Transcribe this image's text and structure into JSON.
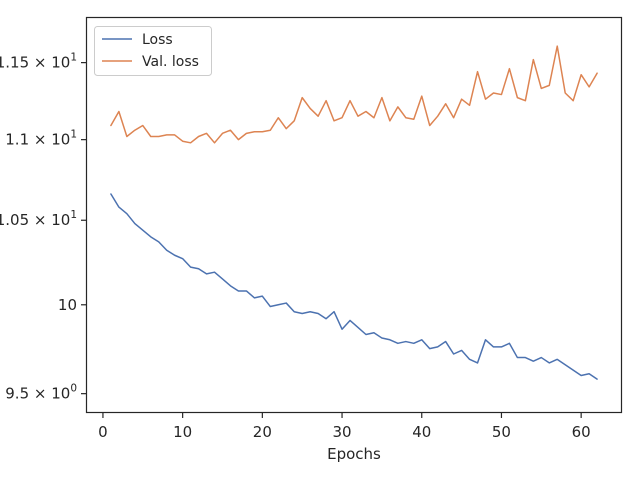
{
  "chart_data": {
    "type": "line",
    "title": "",
    "xlabel": "Epochs",
    "ylabel": "",
    "xlim": [
      -2,
      65
    ],
    "ylim": [
      9.4,
      11.8
    ],
    "yscale": "log",
    "grid": false,
    "legend_position": "top-left",
    "x_ticks": [
      {
        "value": 0,
        "label": "0"
      },
      {
        "value": 10,
        "label": "10"
      },
      {
        "value": 20,
        "label": "20"
      },
      {
        "value": 30,
        "label": "30"
      },
      {
        "value": 40,
        "label": "40"
      },
      {
        "value": 50,
        "label": "50"
      },
      {
        "value": 60,
        "label": "60"
      }
    ],
    "y_ticks": [
      {
        "value": 9.5,
        "mantissa": "9.5",
        "exponent": "0"
      },
      {
        "value": 10,
        "mantissa": "10",
        "exponent": ""
      },
      {
        "value": 10.5,
        "mantissa": "1.05",
        "exponent": "1"
      },
      {
        "value": 11,
        "mantissa": "1.1",
        "exponent": "1"
      },
      {
        "value": 11.5,
        "mantissa": "1.15",
        "exponent": "1"
      }
    ],
    "x": [
      1,
      2,
      3,
      4,
      5,
      6,
      7,
      8,
      9,
      10,
      11,
      12,
      13,
      14,
      15,
      16,
      17,
      18,
      19,
      20,
      21,
      22,
      23,
      24,
      25,
      26,
      27,
      28,
      29,
      30,
      31,
      32,
      33,
      34,
      35,
      36,
      37,
      38,
      39,
      40,
      41,
      42,
      43,
      44,
      45,
      46,
      47,
      48,
      49,
      50,
      51,
      52,
      53,
      54,
      55,
      56,
      57,
      58,
      59,
      60,
      61,
      62
    ],
    "series": [
      {
        "name": "Loss",
        "color": "#4c72b0",
        "values": [
          10.66,
          10.58,
          10.54,
          10.48,
          10.44,
          10.4,
          10.37,
          10.32,
          10.29,
          10.27,
          10.22,
          10.21,
          10.18,
          10.19,
          10.15,
          10.11,
          10.08,
          10.08,
          10.04,
          10.05,
          9.99,
          10.0,
          10.01,
          9.96,
          9.95,
          9.96,
          9.95,
          9.92,
          9.96,
          9.86,
          9.91,
          9.87,
          9.83,
          9.84,
          9.81,
          9.8,
          9.78,
          9.79,
          9.78,
          9.8,
          9.75,
          9.76,
          9.79,
          9.72,
          9.74,
          9.69,
          9.67,
          9.8,
          9.76,
          9.76,
          9.78,
          9.7,
          9.7,
          9.68,
          9.7,
          9.67,
          9.69,
          9.66,
          9.63,
          9.6,
          9.61,
          9.58
        ]
      },
      {
        "name": "Val. loss",
        "color": "#dd8452",
        "values": [
          11.09,
          11.18,
          11.02,
          11.06,
          11.09,
          11.02,
          11.02,
          11.03,
          11.03,
          10.99,
          10.98,
          11.02,
          11.04,
          10.98,
          11.04,
          11.06,
          11.0,
          11.04,
          11.05,
          11.05,
          11.06,
          11.14,
          11.07,
          11.12,
          11.27,
          11.2,
          11.15,
          11.25,
          11.12,
          11.14,
          11.25,
          11.15,
          11.18,
          11.14,
          11.27,
          11.12,
          11.21,
          11.14,
          11.13,
          11.28,
          11.09,
          11.15,
          11.23,
          11.14,
          11.26,
          11.22,
          11.44,
          11.26,
          11.3,
          11.29,
          11.46,
          11.27,
          11.25,
          11.52,
          11.33,
          11.35,
          11.61,
          11.3,
          11.25,
          11.42,
          11.34,
          11.43
        ]
      }
    ]
  }
}
